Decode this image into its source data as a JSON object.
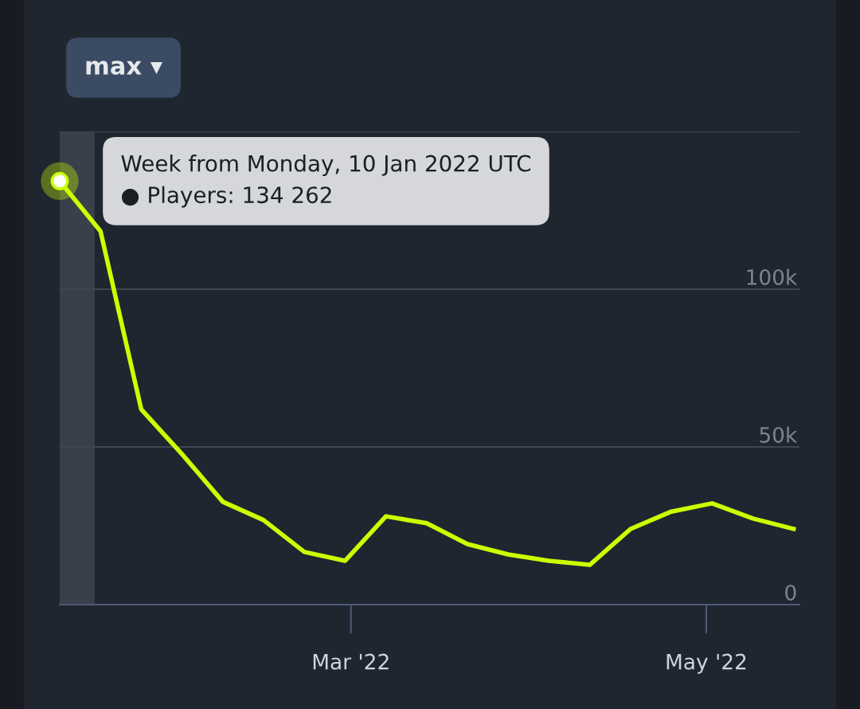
{
  "chart_data": {
    "type": "line",
    "x": [
      "2022-01-10",
      "2022-01-17",
      "2022-01-24",
      "2022-01-31",
      "2022-02-07",
      "2022-02-14",
      "2022-02-21",
      "2022-02-28",
      "2022-03-07",
      "2022-03-14",
      "2022-03-21",
      "2022-03-28",
      "2022-04-04",
      "2022-04-11",
      "2022-04-18",
      "2022-04-25",
      "2022-05-02",
      "2022-05-09",
      "2022-05-16"
    ],
    "series": [
      {
        "color": "#ccff00",
        "values": [
          134262,
          118400,
          61900,
          47700,
          32600,
          26800,
          16700,
          13900,
          28000,
          25800,
          19200,
          15900,
          13900,
          12600,
          24000,
          29500,
          32100,
          27300,
          24000
        ]
      }
    ],
    "xlim": [
      "2022-01-10",
      "2022-05-17"
    ],
    "xticks": [
      {
        "value": "2022-03-01",
        "label": "Mar '22"
      },
      {
        "value": "2022-05-01",
        "label": "May '22"
      }
    ],
    "ylim": [
      0,
      150000
    ],
    "yticks": [
      {
        "value": 0,
        "label": "0"
      },
      {
        "value": 50000,
        "label": "50k"
      },
      {
        "value": 100000,
        "label": "100k"
      },
      {
        "value": 150000,
        "label": null
      }
    ],
    "grid": "y",
    "marker": "none",
    "line_style": "solid",
    "bands": [
      {
        "axis": "x",
        "from": "2022-01-10",
        "to": "2022-01-16",
        "color": "#3a4049"
      }
    ],
    "annotations": [
      "max ▾",
      {
        "text": "Week from Monday, 10 Jan 2022 UTC\n● Players: 134 262",
        "x": "2022-01-10",
        "y": 134262
      }
    ]
  }
}
